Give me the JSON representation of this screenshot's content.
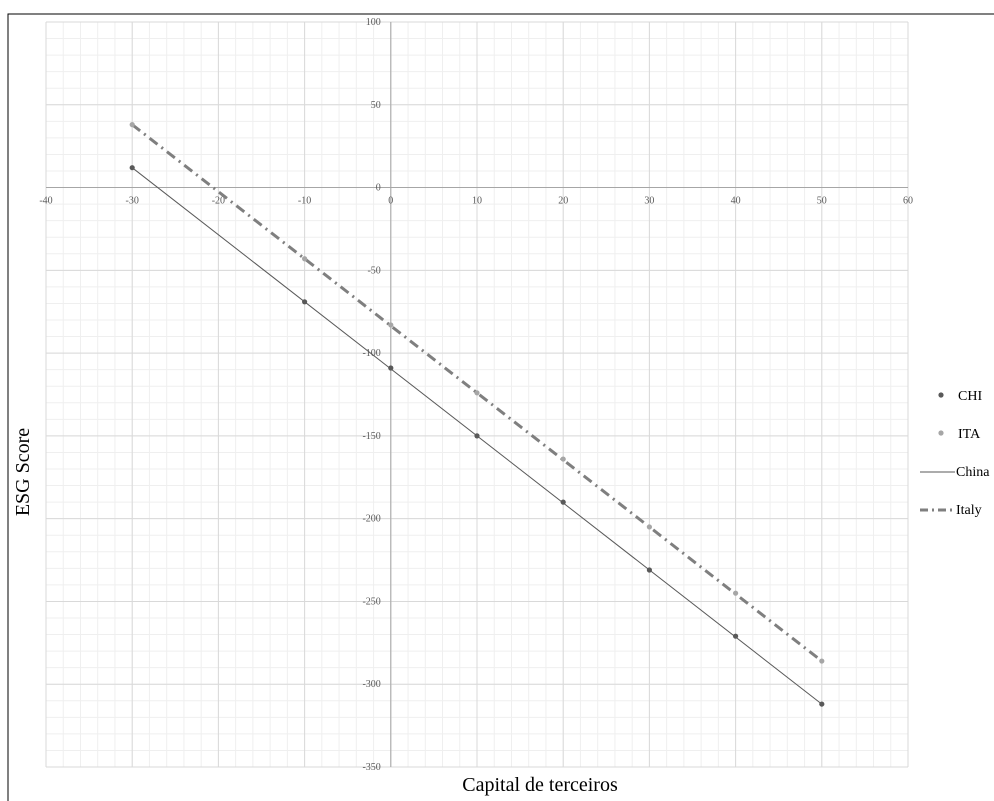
{
  "chart_data": {
    "type": "scatter",
    "title": "",
    "xlabel": "Capital de terceiros",
    "ylabel": "ESG Score",
    "xlim": [
      -40,
      60
    ],
    "ylim": [
      -350,
      100
    ],
    "x_ticks": [
      -40,
      -30,
      -20,
      -10,
      0,
      10,
      20,
      30,
      40,
      50,
      60
    ],
    "y_ticks": [
      100,
      50,
      0,
      -50,
      -100,
      -150,
      -200,
      -250,
      -300,
      -350
    ],
    "grid": true,
    "minor_grid": true,
    "legend_position": "right",
    "series": [
      {
        "name": "CHI",
        "kind": "markers",
        "color": "#595959",
        "points": [
          [
            -30,
            12
          ],
          [
            -10,
            -69
          ],
          [
            0,
            -109
          ],
          [
            10,
            -150
          ],
          [
            20,
            -190
          ],
          [
            30,
            -231
          ],
          [
            40,
            -271
          ],
          [
            50,
            -312
          ]
        ]
      },
      {
        "name": "ITA",
        "kind": "markers",
        "color": "#a6a6a6",
        "points": [
          [
            -30,
            38
          ],
          [
            -10,
            -43
          ],
          [
            0,
            -83
          ],
          [
            10,
            -124
          ],
          [
            20,
            -164
          ],
          [
            30,
            -205
          ],
          [
            40,
            -245
          ],
          [
            50,
            -286
          ]
        ]
      },
      {
        "name": "China",
        "kind": "line",
        "color": "#595959",
        "dash": "solid",
        "points": [
          [
            -30,
            12
          ],
          [
            50,
            -312
          ]
        ]
      },
      {
        "name": "Italy",
        "kind": "line",
        "color": "#7f7f7f",
        "dash": "dashdot",
        "points": [
          [
            -30,
            38
          ],
          [
            50,
            -286
          ]
        ]
      }
    ]
  }
}
